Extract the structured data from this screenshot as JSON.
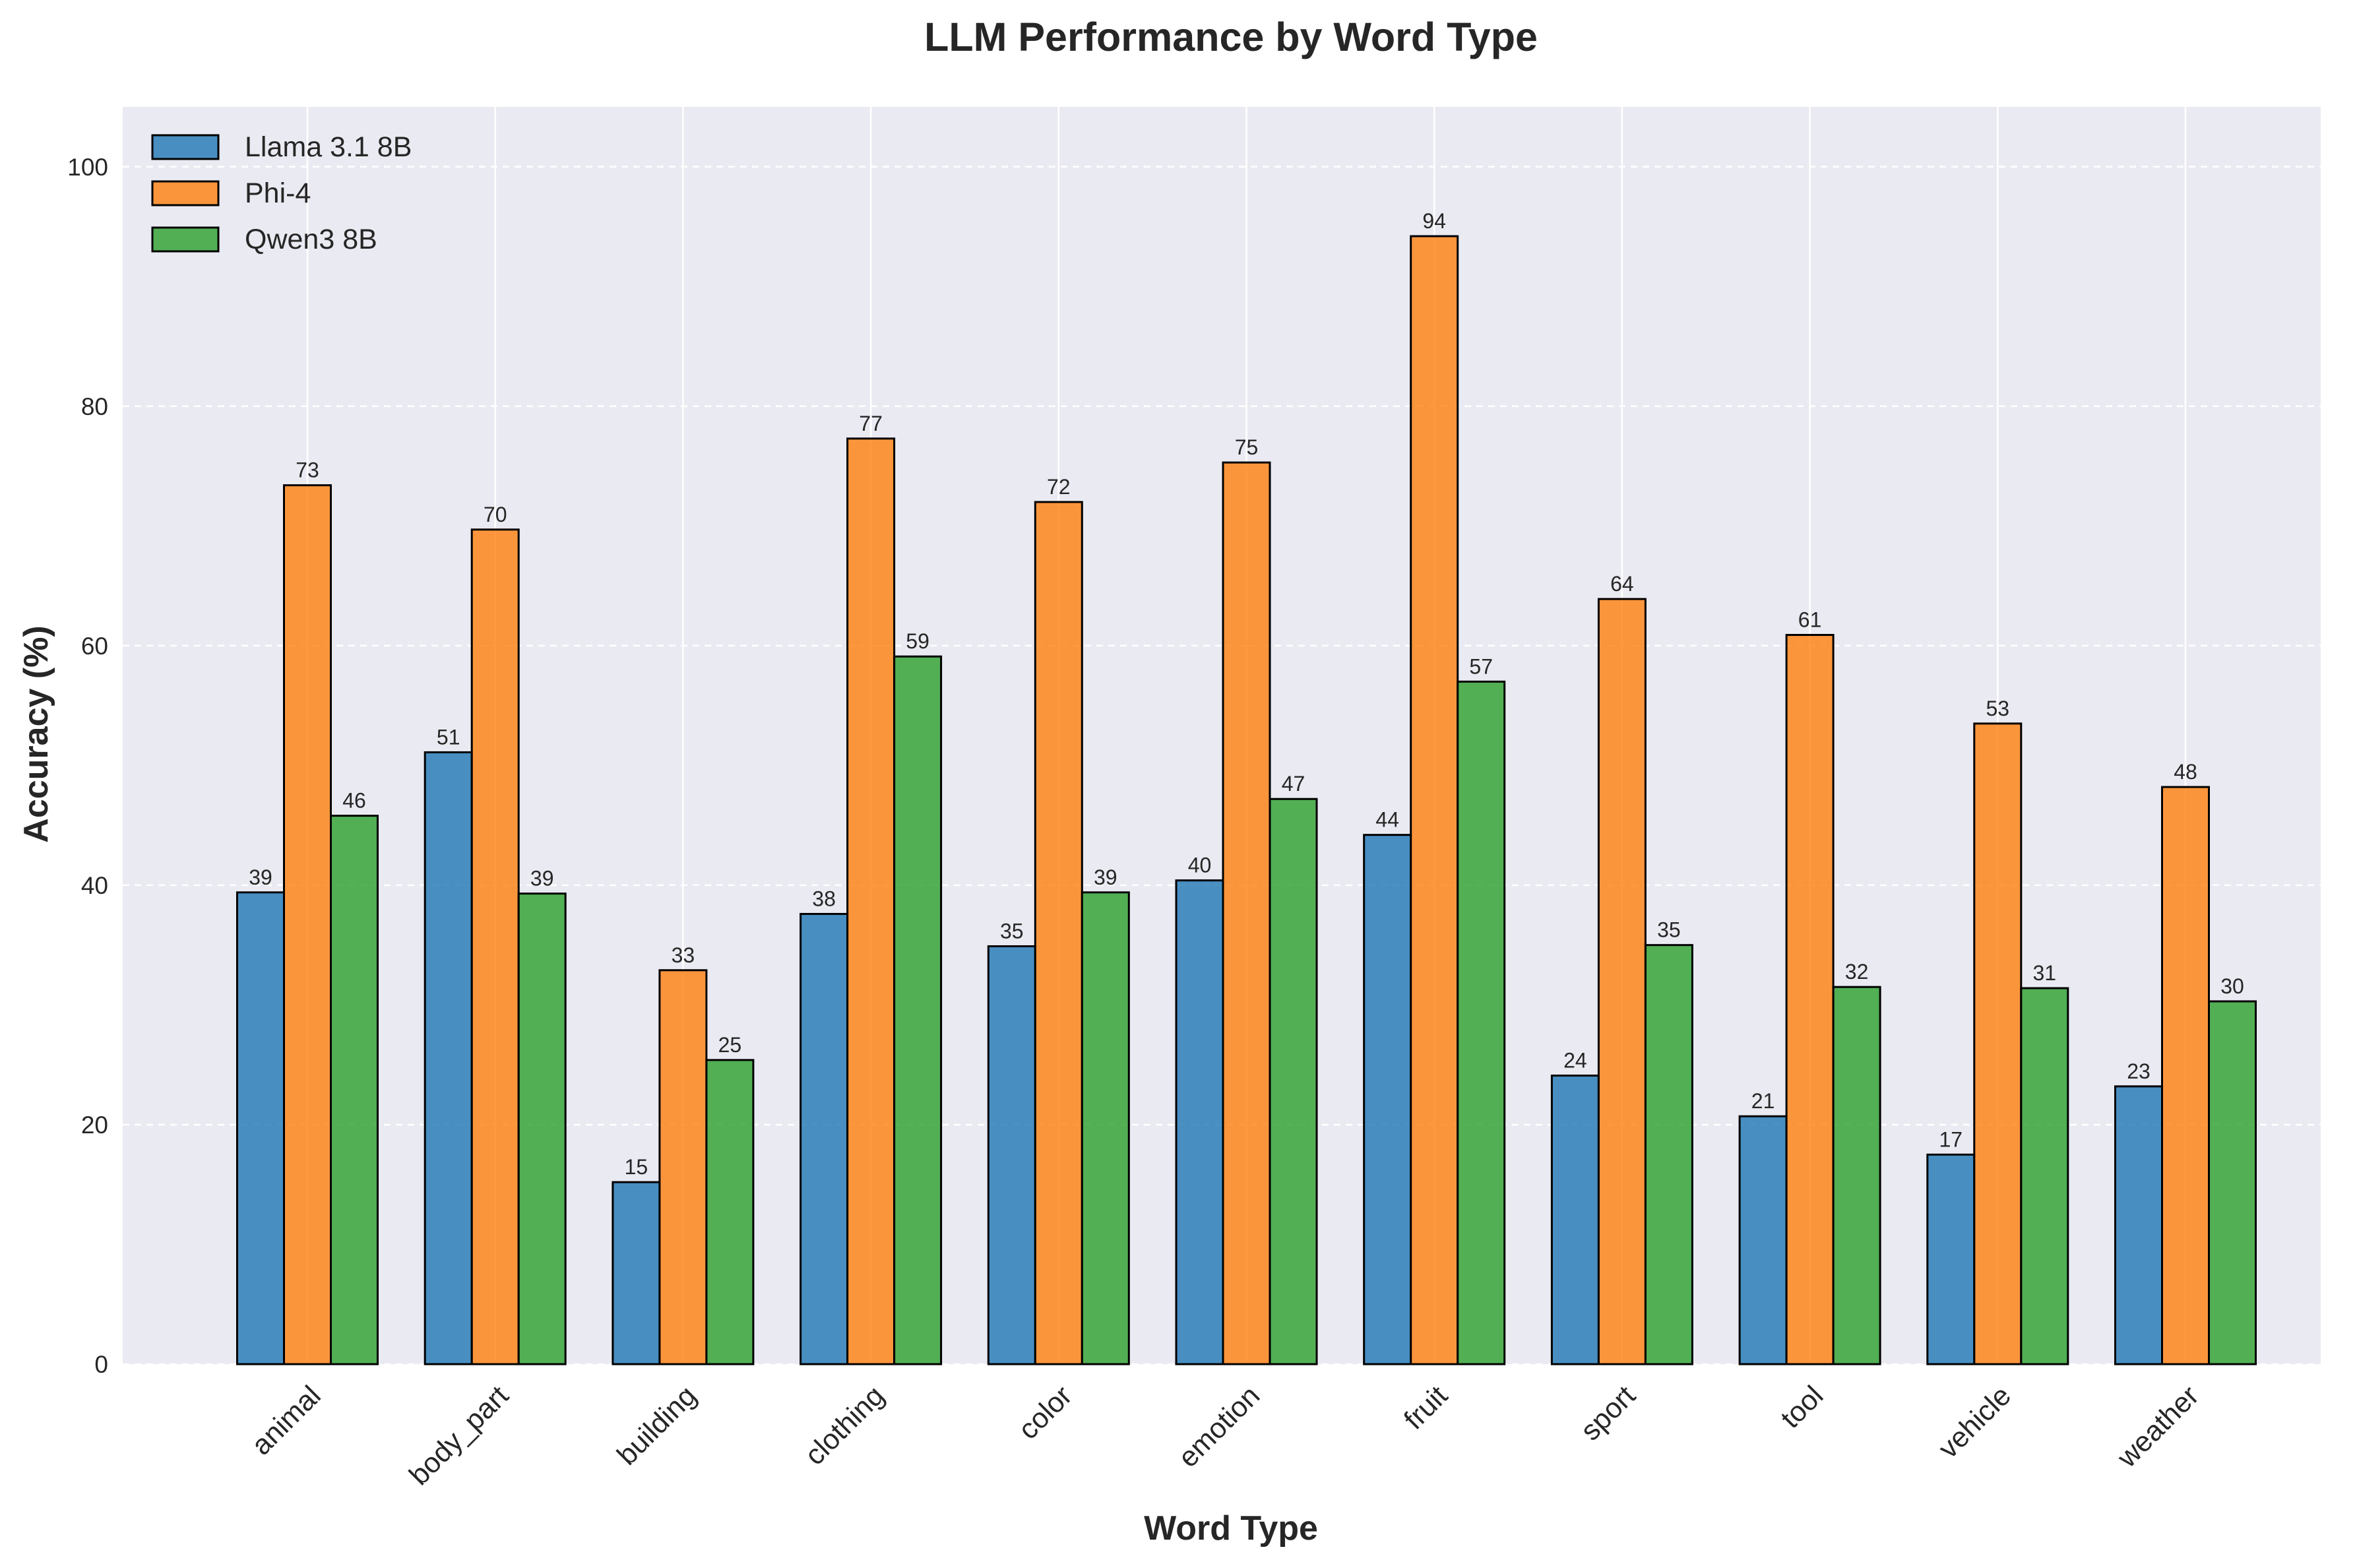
{
  "chart_data": {
    "type": "bar",
    "title": "LLM Performance by Word Type",
    "xlabel": "Word Type",
    "ylabel": "Accuracy (%)",
    "ylim": [
      0,
      105
    ],
    "yticks": [
      0,
      20,
      40,
      60,
      80,
      100
    ],
    "grid": true,
    "legend_position": "top-left",
    "categories": [
      "animal",
      "body_part",
      "building",
      "clothing",
      "color",
      "emotion",
      "fruit",
      "sport",
      "tool",
      "vehicle",
      "weather"
    ],
    "series": [
      {
        "name": "Llama 3.1 8B",
        "color": "#1f77b4",
        "values": [
          39.4,
          51.1,
          15.2,
          37.6,
          34.9,
          40.4,
          44.2,
          24.1,
          20.7,
          17.5,
          23.2
        ],
        "labels": [
          "39",
          "51",
          "15",
          "38",
          "35",
          "40",
          "44",
          "24",
          "21",
          "17",
          "23"
        ]
      },
      {
        "name": "Phi-4",
        "color": "#ff7f0e",
        "values": [
          73.4,
          69.7,
          32.9,
          77.3,
          72.0,
          75.3,
          94.2,
          63.9,
          60.9,
          53.5,
          48.2
        ],
        "labels": [
          "73",
          "70",
          "33",
          "77",
          "72",
          "75",
          "94",
          "64",
          "61",
          "53",
          "48"
        ]
      },
      {
        "name": "Qwen3 8B",
        "color": "#2ca02c",
        "values": [
          45.8,
          39.3,
          25.4,
          59.1,
          39.4,
          47.2,
          57.0,
          35.0,
          31.5,
          31.4,
          30.3
        ],
        "labels": [
          "46",
          "39",
          "25",
          "59",
          "39",
          "47",
          "57",
          "35",
          "32",
          "31",
          "30"
        ]
      }
    ],
    "plot_background": "#eaeaf2",
    "bar_edge_color": "#000000"
  }
}
